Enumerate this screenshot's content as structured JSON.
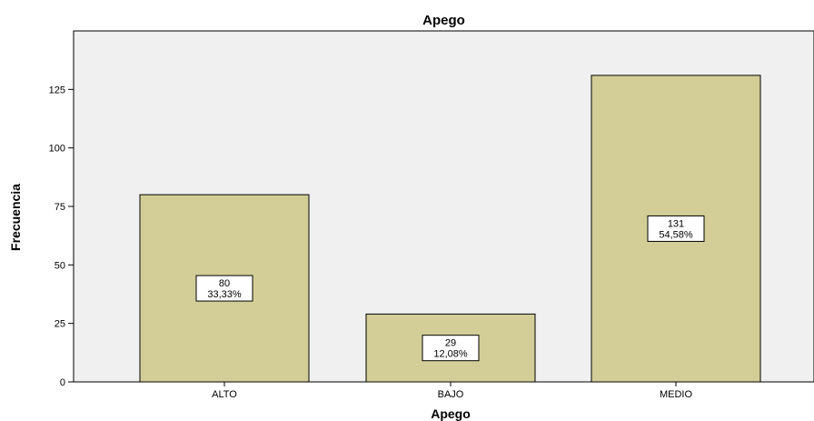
{
  "colors": {
    "plot_background": "#f0f0f0",
    "bar_fill": "#d3ce97",
    "bar_stroke": "#000000",
    "label_box_fill": "#ffffff"
  },
  "chart_data": {
    "type": "bar",
    "title": "Apego",
    "xlabel": "Apego",
    "ylabel": "Frecuencia",
    "categories": [
      "ALTO",
      "BAJO",
      "MEDIO"
    ],
    "values": [
      80,
      29,
      131
    ],
    "percent_labels": [
      "33,33%",
      "12,08%",
      "54,58%"
    ],
    "ylim": [
      0,
      150
    ],
    "yticks": [
      0,
      25,
      50,
      75,
      100,
      125
    ],
    "grid": false,
    "legend": "none"
  }
}
